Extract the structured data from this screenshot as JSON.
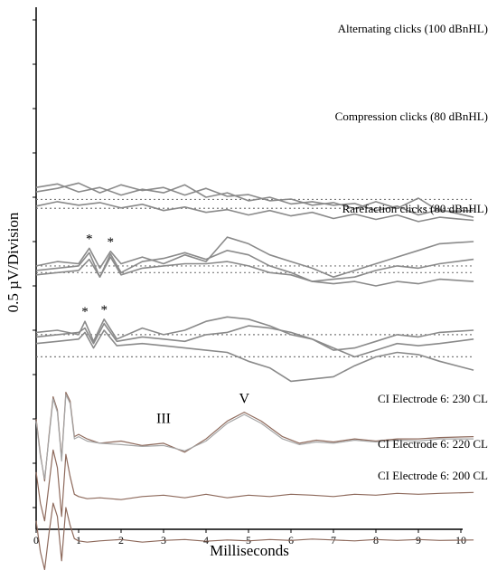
{
  "chart_data": {
    "type": "line",
    "xlabel": "Milliseconds",
    "ylabel": "0.5 µV/Division",
    "xlim": [
      0,
      10.5
    ],
    "x_ticks": [
      "0",
      "1",
      "2",
      "3",
      "4",
      "5",
      "6",
      "7",
      "8",
      "9",
      "10"
    ],
    "y_unit": "divisions",
    "grid": false,
    "legend": "none",
    "colors": {
      "acoustic_trace": "#8a8a8a",
      "ci_trace_a": "#8e6a5c",
      "ci_trace_b": "#a6a6a6",
      "baseline": "#7a7a7a",
      "axis": "#000000"
    },
    "panels": [
      {
        "id": "alternating",
        "label": "Alternating clicks (100 dBnHL)",
        "baselines": [
          5.95,
          5.75
        ],
        "markers": [],
        "series": [
          {
            "x": [
              0,
              0.5,
              1,
              1.5,
              2,
              2.5,
              3,
              3.5,
              4,
              4.5,
              5,
              5.5,
              6,
              6.5,
              7,
              7.5,
              8,
              8.5,
              9,
              9.5,
              10.3
            ],
            "y": [
              6.22,
              6.3,
              6.12,
              6.22,
              6.05,
              6.18,
              6.1,
              6.28,
              6.0,
              6.1,
              5.92,
              6.0,
              5.85,
              5.9,
              5.82,
              5.86,
              5.7,
              5.8,
              5.6,
              5.72,
              5.55
            ]
          },
          {
            "x": [
              0,
              0.5,
              1,
              1.5,
              2,
              2.5,
              3,
              3.5,
              4,
              4.5,
              5,
              5.5,
              6,
              6.5,
              7,
              7.5,
              8,
              8.5,
              9,
              9.5,
              10.3
            ],
            "y": [
              6.12,
              6.2,
              6.32,
              6.1,
              6.28,
              6.15,
              6.22,
              6.05,
              6.2,
              6.02,
              6.06,
              5.92,
              5.96,
              5.82,
              5.88,
              5.74,
              5.9,
              5.75,
              5.98,
              5.68,
              5.7
            ]
          },
          {
            "x": [
              0,
              0.5,
              1,
              1.5,
              2,
              2.5,
              3,
              3.5,
              4,
              4.5,
              5,
              5.5,
              6,
              6.5,
              7,
              7.5,
              8,
              8.5,
              9,
              9.5,
              10.3
            ],
            "y": [
              5.8,
              5.9,
              5.82,
              5.88,
              5.76,
              5.84,
              5.7,
              5.78,
              5.66,
              5.72,
              5.6,
              5.7,
              5.58,
              5.66,
              5.52,
              5.62,
              5.5,
              5.6,
              5.45,
              5.55,
              5.48
            ]
          }
        ]
      },
      {
        "id": "compression",
        "label": "Compression clicks (80 dBnHL)",
        "baselines": [
          4.45,
          4.3
        ],
        "markers": [
          {
            "x": 1.25,
            "label": "*"
          },
          {
            "x": 1.75,
            "label": "*"
          }
        ],
        "series": [
          {
            "x": [
              0,
              0.5,
              1,
              1.25,
              1.5,
              1.75,
              2,
              2.5,
              3,
              3.5,
              4,
              4.5,
              5,
              5.5,
              6,
              6.5,
              7,
              7.5,
              8,
              8.5,
              9,
              9.5,
              10.3
            ],
            "y": [
              4.45,
              4.55,
              4.5,
              4.85,
              4.4,
              4.78,
              4.5,
              4.65,
              4.5,
              4.7,
              4.55,
              5.1,
              4.95,
              4.7,
              4.55,
              4.4,
              4.2,
              4.35,
              4.5,
              4.65,
              4.8,
              4.95,
              5.0
            ]
          },
          {
            "x": [
              0,
              0.5,
              1,
              1.25,
              1.5,
              1.75,
              2,
              2.5,
              3,
              3.5,
              4,
              4.5,
              5,
              5.5,
              6,
              6.5,
              7,
              7.5,
              8,
              8.5,
              9,
              9.5,
              10.3
            ],
            "y": [
              4.35,
              4.4,
              4.45,
              4.75,
              4.2,
              4.72,
              4.3,
              4.55,
              4.62,
              4.75,
              4.6,
              4.8,
              4.7,
              4.45,
              4.3,
              4.1,
              4.15,
              4.2,
              4.35,
              4.45,
              4.4,
              4.5,
              4.6
            ]
          },
          {
            "x": [
              0,
              0.5,
              1,
              1.25,
              1.5,
              1.75,
              2,
              2.5,
              3,
              3.5,
              4,
              4.5,
              5,
              5.5,
              6,
              6.5,
              7,
              7.5,
              8,
              8.5,
              9,
              9.5,
              10.3
            ],
            "y": [
              4.25,
              4.3,
              4.35,
              4.6,
              4.2,
              4.65,
              4.25,
              4.4,
              4.45,
              4.5,
              4.5,
              4.55,
              4.45,
              4.3,
              4.25,
              4.1,
              4.05,
              4.1,
              4.0,
              4.1,
              4.05,
              4.15,
              4.1
            ]
          }
        ]
      },
      {
        "id": "rarefaction",
        "label": "Rarefaction clicks (80 dBnHL)",
        "baselines": [
          2.9,
          2.4
        ],
        "markers": [
          {
            "x": 1.15,
            "label": "*"
          },
          {
            "x": 1.6,
            "label": "*"
          }
        ],
        "series": [
          {
            "x": [
              0,
              0.5,
              1,
              1.15,
              1.35,
              1.6,
              1.9,
              2.5,
              3,
              3.5,
              4,
              4.5,
              5,
              5.5,
              6,
              6.5,
              7,
              7.5,
              8,
              8.5,
              9,
              9.5,
              10.3
            ],
            "y": [
              2.95,
              3.0,
              2.9,
              3.2,
              2.75,
              3.25,
              2.8,
              3.05,
              2.9,
              3.0,
              3.2,
              3.3,
              3.25,
              3.1,
              2.9,
              2.8,
              2.55,
              2.6,
              2.75,
              2.9,
              2.85,
              2.95,
              3.0
            ]
          },
          {
            "x": [
              0,
              0.5,
              1,
              1.15,
              1.35,
              1.6,
              1.9,
              2.5,
              3,
              3.5,
              4,
              4.5,
              5,
              5.5,
              6,
              6.5,
              7,
              7.5,
              8,
              8.5,
              9,
              9.5,
              10.3
            ],
            "y": [
              2.85,
              2.9,
              2.95,
              3.05,
              2.7,
              3.15,
              2.75,
              2.85,
              2.8,
              2.75,
              2.9,
              2.95,
              3.1,
              3.05,
              2.95,
              2.8,
              2.6,
              2.4,
              2.55,
              2.7,
              2.65,
              2.7,
              2.8
            ]
          },
          {
            "x": [
              0,
              0.5,
              1,
              1.15,
              1.35,
              1.6,
              1.9,
              2.5,
              3,
              3.5,
              4,
              4.5,
              5,
              5.5,
              6,
              6.5,
              7,
              7.5,
              8,
              8.5,
              9,
              9.5,
              10.3
            ],
            "y": [
              2.7,
              2.75,
              2.8,
              2.95,
              2.6,
              3.0,
              2.65,
              2.7,
              2.65,
              2.6,
              2.55,
              2.5,
              2.3,
              2.15,
              1.85,
              1.9,
              1.95,
              2.2,
              2.4,
              2.5,
              2.45,
              2.3,
              2.1
            ]
          }
        ]
      },
      {
        "id": "ci_230",
        "label": "CI Electrode 6:  230 CL",
        "baselines": [],
        "markers": [
          {
            "x": 3.0,
            "label": "III"
          },
          {
            "x": 4.9,
            "label": "V"
          }
        ],
        "series": [
          {
            "x": [
              0,
              0.1,
              0.2,
              0.3,
              0.4,
              0.5,
              0.6,
              0.7,
              0.8,
              0.9,
              1.0,
              1.2,
              1.5,
              2,
              2.5,
              3,
              3.5,
              4,
              4.5,
              4.9,
              5.3,
              5.8,
              6.2,
              6.6,
              7,
              7.5,
              8,
              8.5,
              9,
              9.5,
              10.3
            ],
            "y": [
              1.0,
              0.2,
              -0.4,
              0.6,
              1.5,
              1.2,
              0.1,
              1.6,
              1.4,
              0.6,
              0.65,
              0.55,
              0.45,
              0.5,
              0.4,
              0.45,
              0.25,
              0.55,
              0.95,
              1.15,
              0.95,
              0.6,
              0.45,
              0.52,
              0.48,
              0.55,
              0.5,
              0.55,
              0.55,
              0.58,
              0.6
            ]
          },
          {
            "x": [
              0,
              0.1,
              0.2,
              0.3,
              0.4,
              0.5,
              0.6,
              0.7,
              0.8,
              0.9,
              1.0,
              1.2,
              1.5,
              2,
              2.5,
              3,
              3.5,
              4,
              4.5,
              4.9,
              5.3,
              5.8,
              6.2,
              6.6,
              7,
              7.5,
              8,
              8.5,
              9,
              9.5,
              10.3
            ],
            "y": [
              0.95,
              0.15,
              -0.35,
              0.55,
              1.45,
              1.15,
              0.05,
              1.55,
              1.35,
              0.55,
              0.6,
              0.5,
              0.45,
              0.42,
              0.38,
              0.4,
              0.28,
              0.5,
              0.9,
              1.1,
              0.9,
              0.55,
              0.42,
              0.48,
              0.45,
              0.52,
              0.48,
              0.52,
              0.5,
              0.55,
              0.55
            ]
          }
        ]
      },
      {
        "id": "ci_220",
        "label": "CI Electrode 6:  220 CL",
        "baselines": [],
        "markers": [],
        "series": [
          {
            "x": [
              0,
              0.1,
              0.2,
              0.3,
              0.4,
              0.5,
              0.6,
              0.7,
              0.8,
              0.9,
              1.0,
              1.2,
              1.5,
              2,
              2.5,
              3,
              3.5,
              4,
              4.5,
              5,
              5.5,
              6,
              6.5,
              7,
              7.5,
              8,
              8.5,
              9,
              9.5,
              10.3
            ],
            "y": [
              -0.2,
              -0.9,
              -1.3,
              -0.5,
              0.3,
              -0.1,
              -1.2,
              0.2,
              -0.3,
              -0.7,
              -0.75,
              -0.8,
              -0.78,
              -0.82,
              -0.75,
              -0.72,
              -0.78,
              -0.7,
              -0.78,
              -0.72,
              -0.75,
              -0.7,
              -0.72,
              -0.75,
              -0.7,
              -0.72,
              -0.68,
              -0.7,
              -0.68,
              -0.66
            ]
          }
        ]
      },
      {
        "id": "ci_200",
        "label": "CI Electrode 6:  200 CL",
        "baselines": [],
        "markers": [],
        "series": [
          {
            "x": [
              0,
              0.1,
              0.2,
              0.3,
              0.4,
              0.5,
              0.6,
              0.7,
              0.8,
              0.9,
              1.0,
              1.2,
              1.5,
              2,
              2.5,
              3,
              3.5,
              4,
              4.5,
              5,
              5.5,
              6,
              6.5,
              7,
              7.5,
              8,
              8.5,
              9,
              9.5,
              10.3
            ],
            "y": [
              -1.3,
              -2.0,
              -2.4,
              -1.6,
              -0.9,
              -1.2,
              -2.2,
              -1.0,
              -1.4,
              -1.7,
              -1.75,
              -1.78,
              -1.75,
              -1.72,
              -1.78,
              -1.74,
              -1.72,
              -1.76,
              -1.73,
              -1.75,
              -1.72,
              -1.74,
              -1.71,
              -1.73,
              -1.75,
              -1.72,
              -1.74,
              -1.72,
              -1.74,
              -1.73
            ]
          }
        ]
      }
    ]
  }
}
